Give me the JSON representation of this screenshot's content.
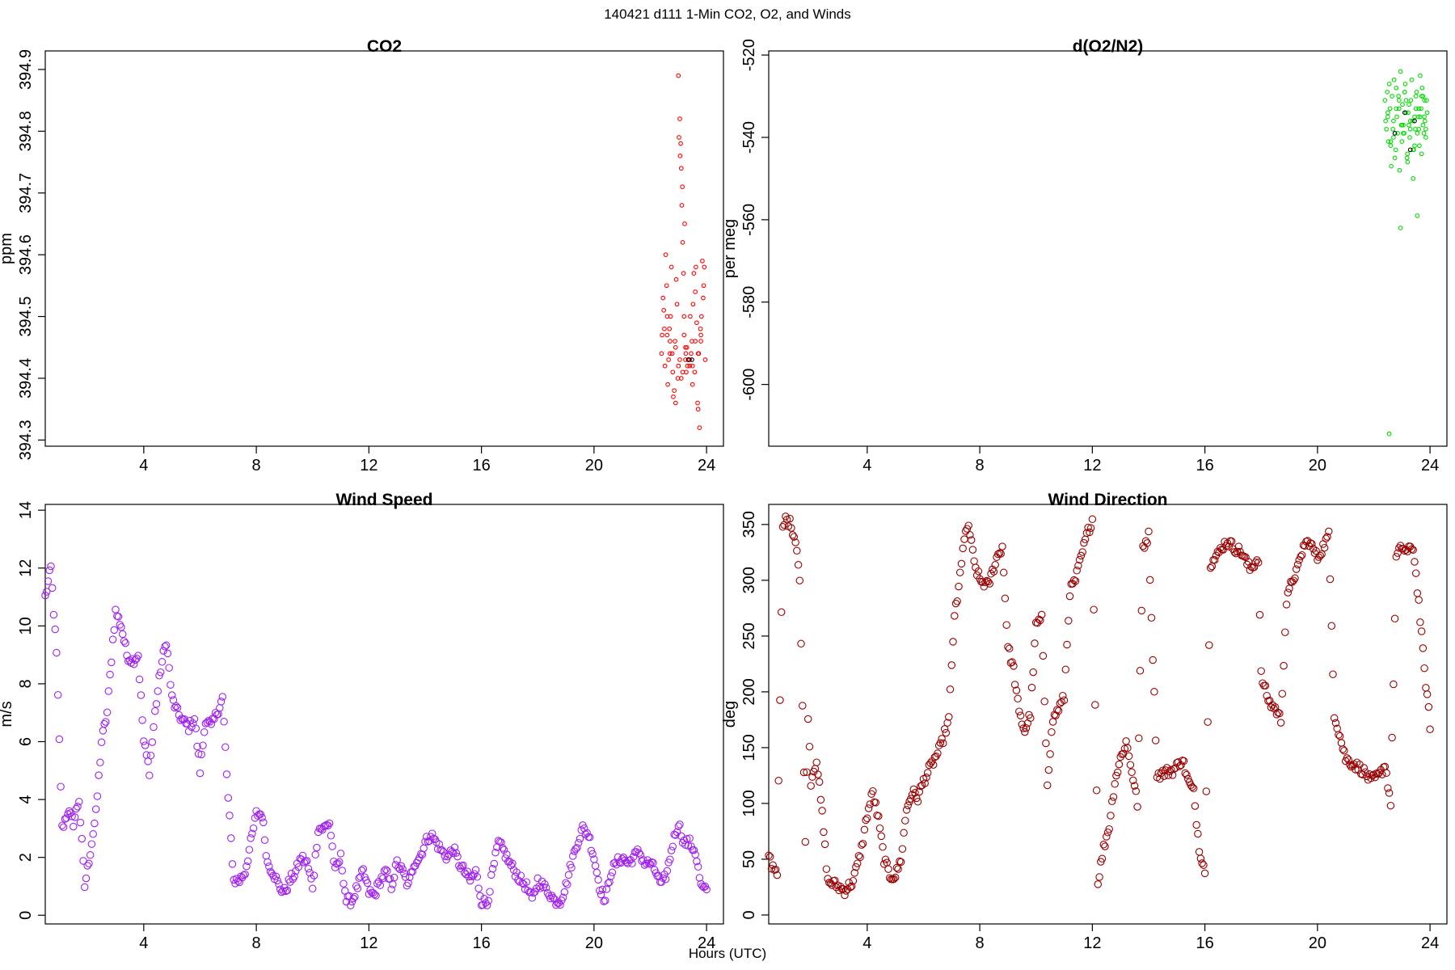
{
  "figure": {
    "suptitle": "140421   d111   1-Min CO2, O2, and Winds",
    "xlabel": "Hours (UTC)"
  },
  "chart_data": [
    {
      "type": "scatter",
      "title": "CO2",
      "ylabel": "ppm",
      "xlim": [
        0.5,
        24.6
      ],
      "ylim": [
        394.29,
        394.93
      ],
      "xticks": [
        4,
        8,
        12,
        16,
        20,
        24
      ],
      "yticks": [
        394.3,
        394.4,
        394.5,
        394.6,
        394.7,
        394.8,
        394.9
      ],
      "colors": {
        "points": "#ff0000",
        "highlight": "#000000"
      },
      "series": [
        {
          "name": "",
          "color": "#ff0000",
          "x": [
            22.4,
            22.45,
            22.5,
            22.55,
            22.6,
            22.65,
            22.7,
            22.75,
            22.8,
            22.85,
            22.9,
            22.95,
            23.0,
            23.05,
            23.08,
            23.1,
            23.12,
            23.15,
            23.18,
            23.2,
            23.25,
            23.28,
            23.3,
            23.35,
            23.4,
            23.45,
            23.5,
            23.55,
            23.6,
            23.65,
            23.7,
            23.75,
            23.8,
            23.85,
            23.9,
            23.95,
            22.42,
            22.48,
            22.52,
            22.58,
            22.62,
            22.68,
            22.72,
            22.78,
            22.82,
            22.88,
            22.92,
            22.98,
            23.02,
            23.06,
            23.14,
            23.22,
            23.26,
            23.32,
            23.38,
            23.42,
            23.48,
            23.52,
            23.58,
            23.62,
            23.68,
            23.72,
            23.78,
            23.82,
            23.88,
            23.92,
            22.6,
            22.9,
            23.0,
            23.1,
            23.2,
            23.4,
            23.6,
            23.8,
            22.7,
            23.05,
            23.15,
            23.25,
            23.5,
            23.7
          ],
          "y": [
            394.44,
            394.53,
            394.48,
            394.6,
            394.5,
            394.43,
            394.46,
            394.58,
            394.41,
            394.38,
            394.36,
            394.52,
            394.89,
            394.82,
            394.78,
            394.74,
            394.68,
            394.62,
            394.57,
            394.47,
            394.43,
            394.41,
            394.45,
            394.43,
            394.42,
            394.44,
            394.39,
            394.57,
            394.54,
            394.49,
            394.35,
            394.32,
            394.46,
            394.59,
            394.55,
            394.43,
            394.47,
            394.51,
            394.42,
            394.55,
            394.39,
            394.48,
            394.5,
            394.44,
            394.37,
            394.46,
            394.56,
            394.4,
            394.79,
            394.76,
            394.71,
            394.65,
            394.44,
            394.42,
            394.43,
            394.5,
            394.46,
            394.52,
            394.41,
            394.58,
            394.36,
            394.44,
            394.48,
            394.5,
            394.53,
            394.58,
            394.47,
            394.45,
            394.42,
            394.4,
            394.5,
            394.43,
            394.46,
            394.47,
            394.44,
            394.43,
            394.41,
            394.45,
            394.42,
            394.44
          ]
        },
        {
          "name": "",
          "color": "#000000",
          "x": [
            23.35,
            23.48
          ],
          "y": [
            394.43,
            394.43
          ]
        }
      ]
    },
    {
      "type": "scatter",
      "title": "d(O2/N2)",
      "ylabel": "per meg",
      "xlim": [
        0.5,
        24.6
      ],
      "ylim": [
        -615,
        -519
      ],
      "xticks": [
        4,
        8,
        12,
        16,
        20,
        24
      ],
      "yticks": [
        -600,
        -580,
        -560,
        -540,
        -520
      ],
      "colors": {
        "points": "#00dd00",
        "highlight": "#000000"
      },
      "series": [
        {
          "name": "",
          "color": "#00dd00",
          "x": [
            22.4,
            22.45,
            22.5,
            22.55,
            22.6,
            22.65,
            22.7,
            22.75,
            22.8,
            22.85,
            22.9,
            22.95,
            23.0,
            23.05,
            23.1,
            23.15,
            23.2,
            23.25,
            23.3,
            23.35,
            23.4,
            23.45,
            23.5,
            23.55,
            23.6,
            23.65,
            23.7,
            23.75,
            23.8,
            23.85,
            23.9,
            22.42,
            22.48,
            22.52,
            22.58,
            22.62,
            22.68,
            22.72,
            22.78,
            22.82,
            22.88,
            22.92,
            22.98,
            23.02,
            23.08,
            23.12,
            23.18,
            23.22,
            23.28,
            23.32,
            23.38,
            23.42,
            23.48,
            23.52,
            23.58,
            23.62,
            23.68,
            23.72,
            23.78,
            23.82,
            23.88,
            22.5,
            22.7,
            22.9,
            23.0,
            23.1,
            23.2,
            23.3,
            23.5,
            23.6,
            23.7,
            23.8,
            22.6,
            22.8,
            23.05,
            23.15,
            23.25,
            23.45,
            23.65,
            23.75,
            23.85,
            22.95,
            23.4,
            23.55,
            22.55
          ],
          "y": [
            -531,
            -538,
            -535,
            -527,
            -542,
            -530,
            -536,
            -545,
            -528,
            -539,
            -533,
            -524,
            -541,
            -537,
            -529,
            -534,
            -546,
            -532,
            -538,
            -526,
            -543,
            -535,
            -530,
            -539,
            -533,
            -525,
            -544,
            -537,
            -531,
            -540,
            -534,
            -536,
            -529,
            -541,
            -533,
            -547,
            -538,
            -526,
            -543,
            -535,
            -530,
            -548,
            -537,
            -532,
            -539,
            -527,
            -545,
            -534,
            -540,
            -531,
            -536,
            -543,
            -538,
            -529,
            -535,
            -542,
            -533,
            -528,
            -539,
            -536,
            -531,
            -534,
            -540,
            -531,
            -537,
            -529,
            -544,
            -536,
            -533,
            -538,
            -530,
            -535,
            -541,
            -533,
            -539,
            -531,
            -537,
            -542,
            -535,
            -530,
            -538,
            -562,
            -550,
            -559,
            -612
          ]
        },
        {
          "name": "",
          "color": "#000000",
          "x": [
            22.75,
            23.1,
            23.3,
            23.45
          ],
          "y": [
            -539,
            -534,
            -543,
            -536
          ]
        }
      ]
    },
    {
      "type": "scatter",
      "title": "Wind Speed",
      "ylabel": "m/s",
      "xlim": [
        0.5,
        24.6
      ],
      "ylim": [
        -0.3,
        14.2
      ],
      "xticks": [
        4,
        8,
        12,
        16,
        20,
        24
      ],
      "yticks": [
        0,
        2,
        4,
        6,
        8,
        10,
        12,
        14
      ],
      "colors": {
        "points": "#a020f0"
      },
      "series": [
        {
          "name": "",
          "color": "#a020f0",
          "knots": {
            "x": [
              0.5,
              0.7,
              0.9,
              1.1,
              1.3,
              1.5,
              1.7,
              1.9,
              2.1,
              2.3,
              2.5,
              2.7,
              2.9,
              3.0,
              3.2,
              3.4,
              3.6,
              3.8,
              4.0,
              4.2,
              4.4,
              4.6,
              4.8,
              5.0,
              5.2,
              5.4,
              5.6,
              5.8,
              6.0,
              6.2,
              6.4,
              6.6,
              6.8,
              7.0,
              7.2,
              7.4,
              7.6,
              7.8,
              8.0,
              8.2,
              8.4,
              8.6,
              8.8,
              9.0,
              9.2,
              9.4,
              9.6,
              9.8,
              10.0,
              10.2,
              10.4,
              10.6,
              10.8,
              11.0,
              11.2,
              11.4,
              11.6,
              11.8,
              12.0,
              12.2,
              12.4,
              12.6,
              12.8,
              13.0,
              13.2,
              13.4,
              13.6,
              13.8,
              14.0,
              14.2,
              14.4,
              14.6,
              14.8,
              15.0,
              15.2,
              15.4,
              15.6,
              15.8,
              16.0,
              16.2,
              16.4,
              16.6,
              16.8,
              17.0,
              17.2,
              17.4,
              17.6,
              17.8,
              18.0,
              18.2,
              18.4,
              18.6,
              18.8,
              19.0,
              19.2,
              19.4,
              19.6,
              19.8,
              20.0,
              20.2,
              20.4,
              20.6,
              20.8,
              21.0,
              21.2,
              21.4,
              21.6,
              21.8,
              22.0,
              22.2,
              22.4,
              22.6,
              22.8,
              23.0,
              23.2,
              23.4,
              23.6,
              23.8,
              24.0
            ],
            "y": [
              11,
              12,
              9,
              3,
              3.6,
              3.2,
              4,
              1,
              2.2,
              3.5,
              6,
              7,
              9.5,
              10.5,
              10,
              9,
              8.8,
              9,
              6,
              5,
              7,
              8.5,
              9.5,
              7.5,
              7,
              6.7,
              6.5,
              6.8,
              5,
              6.8,
              6.5,
              7,
              7.5,
              4,
              1.2,
              1.2,
              1.5,
              2.5,
              3.5,
              3.5,
              1.8,
              1.5,
              1,
              0.8,
              1.2,
              1.5,
              2,
              1.8,
              1,
              3,
              3,
              3.2,
              1.5,
              2,
              0.5,
              0.5,
              1,
              1.5,
              0.8,
              0.7,
              1.2,
              1.5,
              1,
              1.8,
              1.5,
              1,
              1.8,
              2,
              2.5,
              2.8,
              2.5,
              2.2,
              2,
              2.3,
              1.8,
              1.5,
              1.2,
              1.5,
              0.5,
              0.4,
              1.5,
              2.5,
              2.2,
              1.8,
              1.5,
              1.2,
              1,
              0.5,
              1.2,
              1,
              0.8,
              0.5,
              0.5,
              1,
              1.8,
              2.5,
              3,
              2.8,
              2,
              1,
              0.5,
              1.5,
              1.8,
              2,
              1.8,
              2,
              2.2,
              1.8,
              1.8,
              1.5,
              1,
              1.5,
              2.5,
              3.2,
              2.5,
              2.5,
              2.2,
              1,
              0.8
            ]
          },
          "sample_step": 0.05
        }
      ]
    },
    {
      "type": "scatter",
      "title": "Wind Direction",
      "ylabel": "deg",
      "xlim": [
        0.5,
        24.6
      ],
      "ylim": [
        -8,
        368
      ],
      "xticks": [
        4,
        8,
        12,
        16,
        20,
        24
      ],
      "yticks": [
        0,
        50,
        100,
        150,
        200,
        250,
        300,
        350
      ],
      "colors": {
        "points": "#990000"
      },
      "series": [
        {
          "name": "",
          "color": "#990000",
          "knots": {
            "x": [
              0.5,
              0.6,
              0.8,
              1.0,
              1.1,
              1.3,
              1.5,
              1.6,
              1.8,
              1.9,
              2.0,
              2.2,
              2.4,
              2.6,
              2.8,
              3.0,
              3.2,
              3.5,
              3.8,
              4.0,
              4.2,
              4.4,
              4.6,
              4.8,
              5.0,
              5.2,
              5.4,
              5.6,
              5.8,
              6.0,
              6.3,
              6.6,
              6.9,
              7.1,
              7.2,
              7.4,
              7.6,
              7.8,
              8.0,
              8.3,
              8.6,
              8.8,
              9.0,
              9.2,
              9.4,
              9.6,
              9.8,
              10.0,
              10.2,
              10.4,
              10.6,
              10.8,
              11.0,
              11.2,
              11.4,
              11.6,
              11.8,
              12.0,
              12.2,
              12.4,
              12.6,
              12.8,
              13.0,
              13.2,
              13.4,
              13.6,
              13.8,
              14.0,
              14.3,
              14.6,
              14.9,
              15.2,
              15.4,
              15.6,
              15.8,
              16.0,
              16.2,
              16.4,
              16.6,
              16.8,
              17.0,
              17.3,
              17.6,
              17.9,
              18.0,
              18.1,
              18.3,
              18.5,
              18.7,
              18.9,
              19.1,
              19.3,
              19.5,
              19.7,
              20.0,
              20.2,
              20.4,
              20.6,
              20.8,
              21.0,
              21.3,
              21.6,
              21.9,
              22.2,
              22.4,
              22.6,
              22.8,
              23.0,
              23.2,
              23.4,
              23.6,
              23.8,
              24.0
            ],
            "y": [
              55,
              45,
              40,
              345,
              355,
              350,
              330,
              300,
              70,
              180,
              120,
              140,
              90,
              30,
              28,
              25,
              22,
              30,
              60,
              90,
              110,
              85,
              50,
              35,
              35,
              50,
              95,
              110,
              105,
              120,
              135,
              150,
              175,
              270,
              280,
              330,
              350,
              315,
              300,
              295,
              320,
              330,
              240,
              220,
              180,
              165,
              180,
              260,
              265,
              120,
              175,
              185,
              195,
              290,
              300,
              320,
              340,
              355,
              30,
              60,
              80,
              120,
              140,
              155,
              130,
              100,
              330,
              340,
              125,
              128,
              130,
              140,
              120,
              110,
              60,
              40,
              315,
              320,
              330,
              335,
              330,
              325,
              310,
              320,
              215,
              205,
              190,
              185,
              175,
              280,
              300,
              310,
              330,
              335,
              320,
              330,
              340,
              180,
              160,
              140,
              135,
              130,
              120,
              125,
              135,
              100,
              320,
              330,
              325,
              330,
              280,
              220,
              170
            ]
          },
          "sample_step": 0.05
        }
      ]
    }
  ]
}
